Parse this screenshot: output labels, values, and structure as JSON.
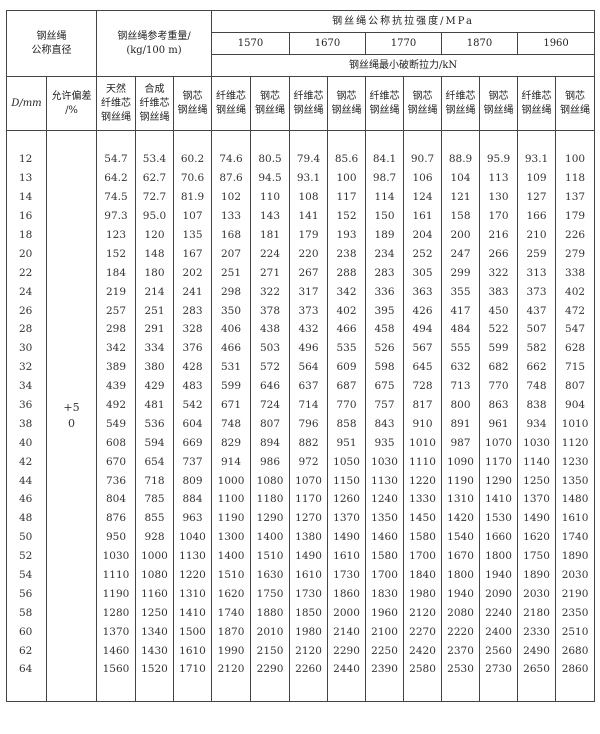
{
  "header": {
    "diameter_group": "钢丝绳\n公称直径",
    "weight_group": "钢丝绳参考重量/\n(kg/100 m)",
    "strength_group": "钢丝绳公称抗拉强度/MPa",
    "strength_grades": [
      "1570",
      "1670",
      "1770",
      "1870",
      "1960"
    ],
    "breaking_force": "钢丝绳最小破断拉力/kN",
    "col_d": "D/mm",
    "col_tolerance": "允许偏差\n/%",
    "col_w_natural": "天然\n纤维芯\n钢丝绳",
    "col_w_synthetic": "合成\n纤维芯\n钢丝绳",
    "col_w_steel": "钢芯\n钢丝绳",
    "col_fiber": "纤维芯\n钢丝绳",
    "col_steel": "钢芯\n钢丝绳"
  },
  "tolerance": "+5\n0",
  "rows": [
    [
      "12",
      "54.7",
      "53.4",
      "60.2",
      "74.6",
      "80.5",
      "79.4",
      "85.6",
      "84.1",
      "90.7",
      "88.9",
      "95.9",
      "93.1",
      "100"
    ],
    [
      "13",
      "64.2",
      "62.7",
      "70.6",
      "87.6",
      "94.5",
      "93.1",
      "100",
      "98.7",
      "106",
      "104",
      "113",
      "109",
      "118"
    ],
    [
      "14",
      "74.5",
      "72.7",
      "81.9",
      "102",
      "110",
      "108",
      "117",
      "114",
      "124",
      "121",
      "130",
      "127",
      "137"
    ],
    [
      "16",
      "97.3",
      "95.0",
      "107",
      "133",
      "143",
      "141",
      "152",
      "150",
      "161",
      "158",
      "170",
      "166",
      "179"
    ],
    [
      "18",
      "123",
      "120",
      "135",
      "168",
      "181",
      "179",
      "193",
      "189",
      "204",
      "200",
      "216",
      "210",
      "226"
    ],
    [
      "20",
      "152",
      "148",
      "167",
      "207",
      "224",
      "220",
      "238",
      "234",
      "252",
      "247",
      "266",
      "259",
      "279"
    ],
    [
      "22",
      "184",
      "180",
      "202",
      "251",
      "271",
      "267",
      "288",
      "283",
      "305",
      "299",
      "322",
      "313",
      "338"
    ],
    [
      "24",
      "219",
      "214",
      "241",
      "298",
      "322",
      "317",
      "342",
      "336",
      "363",
      "355",
      "383",
      "373",
      "402"
    ],
    [
      "26",
      "257",
      "251",
      "283",
      "350",
      "378",
      "373",
      "402",
      "395",
      "426",
      "417",
      "450",
      "437",
      "472"
    ],
    [
      "28",
      "298",
      "291",
      "328",
      "406",
      "438",
      "432",
      "466",
      "458",
      "494",
      "484",
      "522",
      "507",
      "547"
    ],
    [
      "30",
      "342",
      "334",
      "376",
      "466",
      "503",
      "496",
      "535",
      "526",
      "567",
      "555",
      "599",
      "582",
      "628"
    ],
    [
      "32",
      "389",
      "380",
      "428",
      "531",
      "572",
      "564",
      "609",
      "598",
      "645",
      "632",
      "682",
      "662",
      "715"
    ],
    [
      "34",
      "439",
      "429",
      "483",
      "599",
      "646",
      "637",
      "687",
      "675",
      "728",
      "713",
      "770",
      "748",
      "807"
    ],
    [
      "36",
      "492",
      "481",
      "542",
      "671",
      "724",
      "714",
      "770",
      "757",
      "817",
      "800",
      "863",
      "838",
      "904"
    ],
    [
      "38",
      "549",
      "536",
      "604",
      "748",
      "807",
      "796",
      "858",
      "843",
      "910",
      "891",
      "961",
      "934",
      "1010"
    ],
    [
      "40",
      "608",
      "594",
      "669",
      "829",
      "894",
      "882",
      "951",
      "935",
      "1010",
      "987",
      "1070",
      "1030",
      "1120"
    ],
    [
      "42",
      "670",
      "654",
      "737",
      "914",
      "986",
      "972",
      "1050",
      "1030",
      "1110",
      "1090",
      "1170",
      "1140",
      "1230"
    ],
    [
      "44",
      "736",
      "718",
      "809",
      "1000",
      "1080",
      "1070",
      "1150",
      "1130",
      "1220",
      "1190",
      "1290",
      "1250",
      "1350"
    ],
    [
      "46",
      "804",
      "785",
      "884",
      "1100",
      "1180",
      "1170",
      "1260",
      "1240",
      "1330",
      "1310",
      "1410",
      "1370",
      "1480"
    ],
    [
      "48",
      "876",
      "855",
      "963",
      "1190",
      "1290",
      "1270",
      "1370",
      "1350",
      "1450",
      "1420",
      "1530",
      "1490",
      "1610"
    ],
    [
      "50",
      "950",
      "928",
      "1040",
      "1300",
      "1400",
      "1380",
      "1490",
      "1460",
      "1580",
      "1540",
      "1660",
      "1620",
      "1740"
    ],
    [
      "52",
      "1030",
      "1000",
      "1130",
      "1400",
      "1510",
      "1490",
      "1610",
      "1580",
      "1700",
      "1670",
      "1800",
      "1750",
      "1890"
    ],
    [
      "54",
      "1110",
      "1080",
      "1220",
      "1510",
      "1630",
      "1610",
      "1730",
      "1700",
      "1840",
      "1800",
      "1940",
      "1890",
      "2030"
    ],
    [
      "56",
      "1190",
      "1160",
      "1310",
      "1620",
      "1750",
      "1730",
      "1860",
      "1830",
      "1980",
      "1940",
      "2090",
      "2030",
      "2190"
    ],
    [
      "58",
      "1280",
      "1250",
      "1410",
      "1740",
      "1880",
      "1850",
      "2000",
      "1960",
      "2120",
      "2080",
      "2240",
      "2180",
      "2350"
    ],
    [
      "60",
      "1370",
      "1340",
      "1500",
      "1870",
      "2010",
      "1980",
      "2140",
      "2100",
      "2270",
      "2220",
      "2400",
      "2330",
      "2510"
    ],
    [
      "62",
      "1460",
      "1430",
      "1610",
      "1990",
      "2150",
      "2120",
      "2290",
      "2250",
      "2420",
      "2370",
      "2560",
      "2490",
      "2680"
    ],
    [
      "64",
      "1560",
      "1520",
      "1710",
      "2120",
      "2290",
      "2260",
      "2440",
      "2390",
      "2580",
      "2530",
      "2730",
      "2650",
      "2860"
    ]
  ]
}
